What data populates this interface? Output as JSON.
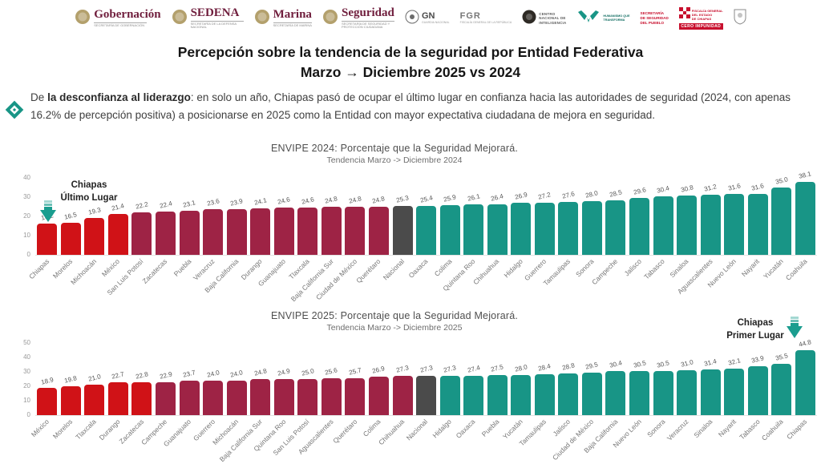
{
  "header": {
    "logos": [
      {
        "name": "Gobernación",
        "sub": "SECRETARÍA DE GOBERNACIÓN"
      },
      {
        "name": "SEDENA",
        "sub": "SECRETARÍA DE LA DEFENSA NACIONAL"
      },
      {
        "name": "Marina",
        "sub": "SECRETARÍA DE MARINA"
      },
      {
        "name": "Seguridad",
        "sub": "SECRETARÍA DE SEGURIDAD Y PROTECCIÓN CIUDADANA"
      },
      {
        "name": "GN",
        "sub": "GUARDIA NACIONAL"
      },
      {
        "name": "FGR",
        "sub": "FISCALÍA GENERAL DE LA REPÚBLICA"
      },
      {
        "lines": [
          "CENTRO",
          "NACIONAL DE",
          "INTELIGENCIA"
        ]
      },
      {
        "lines": [
          "HUMANISMO QUE",
          "TRANSFORMA"
        ]
      },
      {
        "lines": [
          "SECRETARÍA",
          "DE SEGURIDAD",
          "DEL PUEBLO"
        ]
      },
      {
        "lines": [
          "FISCALÍA GENERAL",
          "DEL ESTADO",
          "DE CHIAPAS"
        ],
        "badge": "CERO IMPUNIDAD"
      }
    ]
  },
  "title": {
    "line1": "Percepción sobre la tendencia de la seguridad por Entidad Federativa",
    "line2": "Marzo → Diciembre 2025 vs 2024"
  },
  "intro": {
    "prefix": "De ",
    "bold": "la desconfianza al liderazgo",
    "rest": ": en solo un año, Chiapas pasó de ocupar el último lugar en confianza hacia las autoridades de seguridad (2024, con apenas 16.2% de percepción positiva) a posicionarse en 2025 como la Entidad con mayor expectativa ciudadana de mejora en seguridad."
  },
  "colors": {
    "red": "#d01217",
    "maroon": "#9e2345",
    "gray": "#4b4b4b",
    "teal": "#189586",
    "arrow": "#1a9d8f",
    "brand": "#6f1d3c",
    "gold": "#b3a06c",
    "fge_red": "#c8102e"
  },
  "chart_data": [
    {
      "type": "bar",
      "title": "ENVIPE 2024: Porcentaje que la Seguridad Mejorará.",
      "subtitle": "Tendencia Marzo -> Diciembre 2024",
      "ylabel": "",
      "xlabel": "",
      "ylim": [
        0,
        40
      ],
      "yticks": [
        0,
        10,
        20,
        30,
        40
      ],
      "grid": false,
      "categories": [
        "Chiapas",
        "Morelos",
        "Michoacán",
        "México",
        "San Luis Potosí",
        "Zacatecas",
        "Puebla",
        "Veracruz",
        "Baja California",
        "Durango",
        "Guanajuato",
        "Tlaxcala",
        "Baja California Sur",
        "Ciudad de México",
        "Querétaro",
        "Nacional",
        "Oaxaca",
        "Colima",
        "Quintana Roo",
        "Chihuahua",
        "Hidalgo",
        "Guerrero",
        "Tamaulipas",
        "Sonora",
        "Campeche",
        "Jalisco",
        "Tabasco",
        "Sinaloa",
        "Aguascalientes",
        "Nuevo León",
        "Nayarit",
        "Yucatán",
        "Coahuila"
      ],
      "values": [
        16.2,
        16.5,
        19.3,
        21.4,
        22.2,
        22.4,
        23.1,
        23.6,
        23.9,
        24.1,
        24.6,
        24.6,
        24.8,
        24.8,
        24.8,
        25.3,
        25.4,
        25.9,
        26.1,
        26.4,
        26.9,
        27.2,
        27.6,
        28.0,
        28.5,
        29.6,
        30.4,
        30.8,
        31.2,
        31.6,
        31.6,
        35.0,
        38.1
      ],
      "color_keys": [
        "red",
        "red",
        "red",
        "red",
        "maroon",
        "maroon",
        "maroon",
        "maroon",
        "maroon",
        "maroon",
        "maroon",
        "maroon",
        "maroon",
        "maroon",
        "maroon",
        "gray",
        "teal",
        "teal",
        "teal",
        "teal",
        "teal",
        "teal",
        "teal",
        "teal",
        "teal",
        "teal",
        "teal",
        "teal",
        "teal",
        "teal",
        "teal",
        "teal",
        "teal"
      ],
      "annotation": {
        "line1": "Chiapas",
        "line2": "Último Lugar",
        "target": "Chiapas"
      }
    },
    {
      "type": "bar",
      "title": "ENVIPE 2025: Porcentaje que la Seguridad Mejorará.",
      "subtitle": "Tendencia Marzo -> Diciembre 2025",
      "ylabel": "",
      "xlabel": "",
      "ylim": [
        0,
        50
      ],
      "yticks": [
        0,
        10,
        20,
        30,
        40,
        50
      ],
      "grid": false,
      "categories": [
        "México",
        "Morelos",
        "Tlaxcala",
        "Durango",
        "Zacatecas",
        "Campeche",
        "Guanajuato",
        "Guerrero",
        "Michoacán",
        "Baja California Sur",
        "Quintana Roo",
        "San Luis Potosí",
        "Aguascalientes",
        "Querétaro",
        "Colima",
        "Chihuahua",
        "Nacional",
        "Hidalgo",
        "Oaxaca",
        "Puebla",
        "Yucatán",
        "Tamaulipas",
        "Jalisco",
        "Ciudad de México",
        "Baja California",
        "Nuevo León",
        "Sonora",
        "Veracruz",
        "Sinaloa",
        "Nayarit",
        "Tabasco",
        "Coahuila",
        "Chiapas"
      ],
      "values": [
        18.9,
        19.8,
        21.0,
        22.7,
        22.8,
        22.9,
        23.7,
        24.0,
        24.0,
        24.8,
        24.9,
        25.0,
        25.6,
        25.7,
        26.9,
        27.3,
        27.3,
        27.3,
        27.4,
        27.5,
        28.0,
        28.4,
        28.8,
        29.5,
        30.4,
        30.5,
        30.5,
        31.0,
        31.4,
        32.1,
        33.9,
        35.5,
        44.8
      ],
      "color_keys": [
        "red",
        "red",
        "red",
        "red",
        "red",
        "maroon",
        "maroon",
        "maroon",
        "maroon",
        "maroon",
        "maroon",
        "maroon",
        "maroon",
        "maroon",
        "maroon",
        "maroon",
        "gray",
        "teal",
        "teal",
        "teal",
        "teal",
        "teal",
        "teal",
        "teal",
        "teal",
        "teal",
        "teal",
        "teal",
        "teal",
        "teal",
        "teal",
        "teal",
        "teal"
      ],
      "annotation": {
        "line1": "Chiapas",
        "line2": "Primer Lugar",
        "target": "Chiapas"
      }
    }
  ]
}
